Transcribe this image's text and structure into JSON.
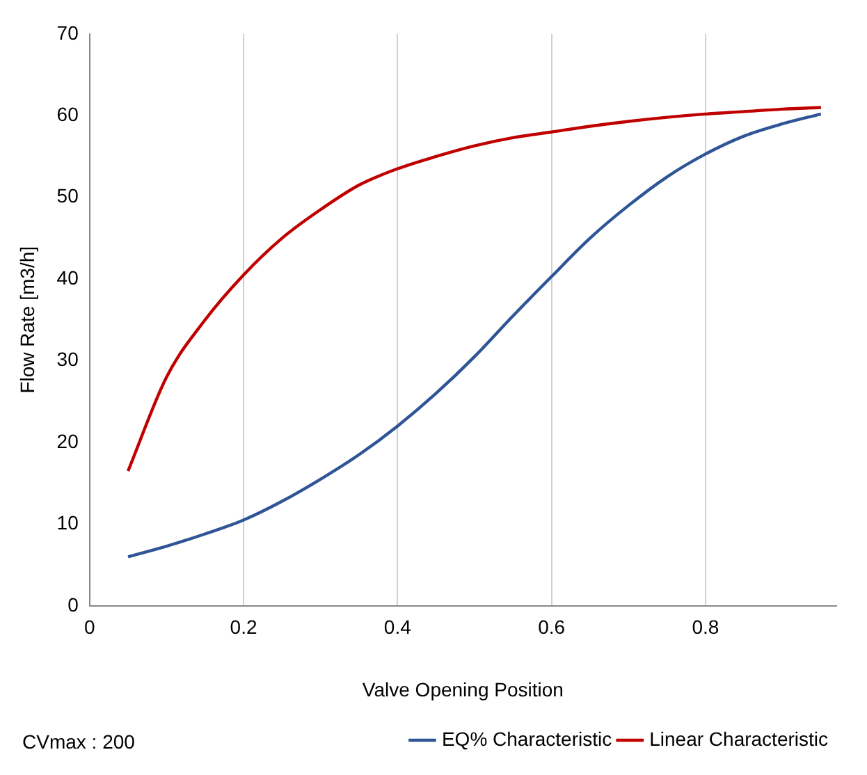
{
  "chart_data": {
    "type": "line",
    "xlabel": "Valve Opening Position",
    "ylabel": "Flow Rate [m3/h]",
    "xlim": [
      0,
      0.97
    ],
    "xticks": [
      0,
      0.2,
      0.4,
      0.6,
      0.8
    ],
    "ylim": [
      0,
      70
    ],
    "yticks": [
      0,
      10,
      20,
      30,
      40,
      50,
      60,
      70
    ],
    "grid": "x",
    "legend": "bottom",
    "marker": "none",
    "line_style": "solid",
    "annotations": [
      "CVmax : 200"
    ],
    "x": [
      0.05,
      0.1,
      0.15,
      0.2,
      0.25,
      0.3,
      0.35,
      0.4,
      0.45,
      0.5,
      0.55,
      0.6,
      0.65,
      0.7,
      0.75,
      0.8,
      0.85,
      0.9,
      0.95
    ],
    "series": [
      {
        "name": "EQ% Characteristic",
        "color": "#2f5597",
        "values": [
          6,
          7.3,
          8.8,
          10.5,
          12.8,
          15.5,
          18.5,
          22,
          26,
          30.5,
          35.5,
          40.3,
          45,
          49,
          52.5,
          55.3,
          57.5,
          59,
          60.2
        ]
      },
      {
        "name": "Linear Characteristic",
        "color": "#c00000",
        "values": [
          16.5,
          28,
          35,
          40.5,
          45,
          48.5,
          51.5,
          53.5,
          55,
          56.3,
          57.3,
          58,
          58.7,
          59.3,
          59.8,
          60.2,
          60.5,
          60.8,
          61
        ]
      }
    ]
  }
}
